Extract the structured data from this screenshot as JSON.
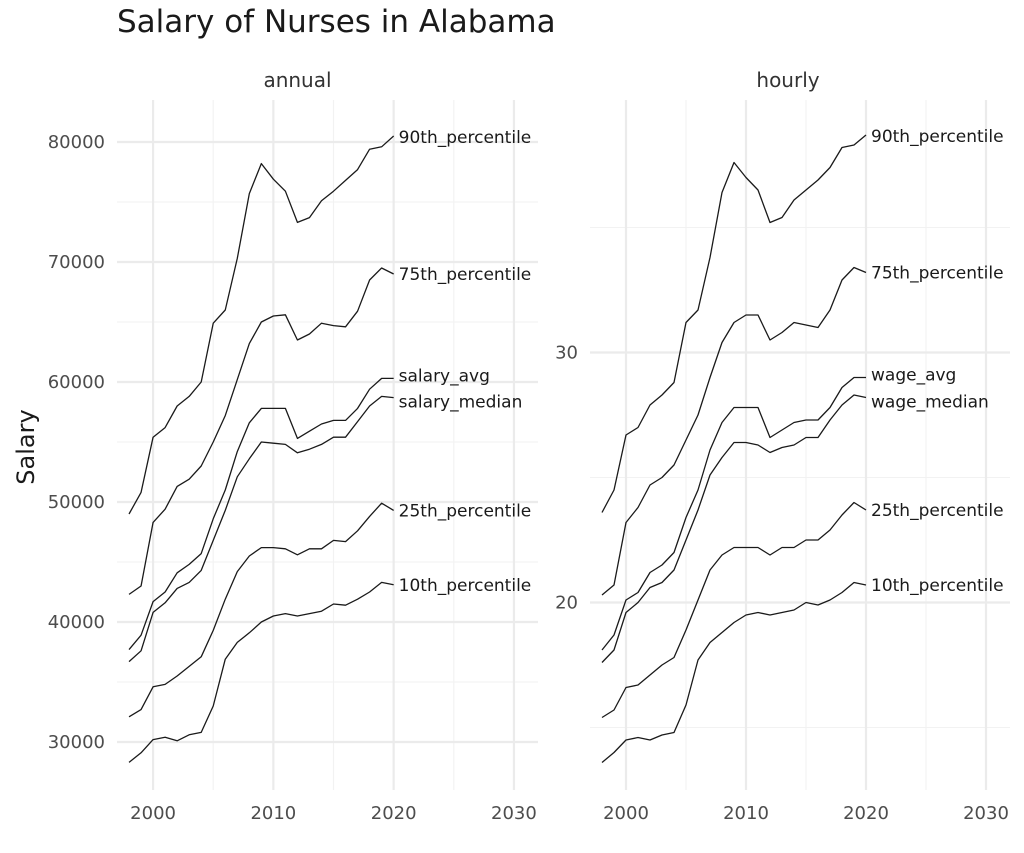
{
  "chart_data": {
    "type": "line",
    "title": "Salary of Nurses in Alabama",
    "ylabel": "Salary",
    "xlabel": "",
    "grid": true,
    "legend": "direct labels at line ends",
    "x": [
      1998,
      1999,
      2000,
      2001,
      2002,
      2003,
      2004,
      2005,
      2006,
      2007,
      2008,
      2009,
      2010,
      2011,
      2012,
      2013,
      2014,
      2015,
      2016,
      2017,
      2018,
      2019,
      2020
    ],
    "panels": [
      {
        "name": "annual",
        "xlim": [
          1997,
          2032
        ],
        "ylim": [
          26000,
          83500
        ],
        "x_ticks": [
          2000,
          2010,
          2020,
          2030
        ],
        "y_ticks": [
          30000,
          40000,
          50000,
          60000,
          70000,
          80000
        ],
        "y_tick_labels": [
          "30000",
          "40000",
          "50000",
          "60000",
          "70000",
          "80000"
        ],
        "series": [
          {
            "name": "90th_percentile",
            "values": [
              49000,
              50800,
              55400,
              56200,
              58000,
              58800,
              60000,
              64900,
              66000,
              70300,
              75700,
              78200,
              76900,
              75900,
              73300,
              73700,
              75100,
              75900,
              76800,
              77700,
              79400,
              79600,
              80500
            ]
          },
          {
            "name": "75th_percentile",
            "values": [
              42300,
              43000,
              48300,
              49400,
              51300,
              51900,
              53000,
              55000,
              57200,
              60200,
              63200,
              65000,
              65500,
              65600,
              63500,
              64000,
              64900,
              64700,
              64600,
              65900,
              68500,
              69500,
              69000
            ]
          },
          {
            "name": "salary_avg",
            "values": [
              37700,
              38900,
              41700,
              42500,
              44100,
              44800,
              45700,
              48600,
              51000,
              54200,
              56600,
              57800,
              57800,
              57800,
              55300,
              55900,
              56500,
              56800,
              56800,
              57800,
              59400,
              60300,
              60300
            ]
          },
          {
            "name": "salary_median",
            "values": [
              36700,
              37600,
              40800,
              41600,
              42800,
              43300,
              44300,
              46800,
              49300,
              52100,
              53600,
              55000,
              54900,
              54800,
              54100,
              54400,
              54800,
              55400,
              55400,
              56700,
              58000,
              58800,
              58700
            ]
          },
          {
            "name": "25th_percentile",
            "values": [
              32100,
              32700,
              34600,
              34800,
              35500,
              36300,
              37100,
              39300,
              41900,
              44200,
              45500,
              46200,
              46200,
              46100,
              45600,
              46100,
              46100,
              46800,
              46700,
              47600,
              48800,
              49900,
              49300
            ]
          },
          {
            "name": "10th_percentile",
            "values": [
              28300,
              29100,
              30200,
              30400,
              30100,
              30600,
              30800,
              33000,
              36900,
              38300,
              39100,
              40000,
              40500,
              40700,
              40500,
              40700,
              40900,
              41500,
              41400,
              41900,
              42500,
              43300,
              43100
            ]
          }
        ]
      },
      {
        "name": "hourly",
        "xlim": [
          1997,
          2032
        ],
        "ylim": [
          12500,
          40100
        ],
        "x_ticks": [
          2000,
          2010,
          2020,
          2030
        ],
        "y_ticks": [
          20,
          30
        ],
        "y_tick_labels": [
          "20",
          "30"
        ],
        "series": [
          {
            "name": "90th_percentile",
            "values": [
              23.6,
              24.5,
              26.7,
              27.0,
              27.9,
              28.3,
              28.8,
              31.2,
              31.7,
              33.8,
              36.4,
              37.6,
              37.0,
              36.5,
              35.2,
              35.4,
              36.1,
              36.5,
              36.9,
              37.4,
              38.2,
              38.3,
              38.7
            ]
          },
          {
            "name": "75th_percentile",
            "values": [
              20.3,
              20.7,
              23.2,
              23.8,
              24.7,
              25.0,
              25.5,
              26.5,
              27.5,
              29.0,
              30.4,
              31.2,
              31.5,
              31.5,
              30.5,
              30.8,
              31.2,
              31.1,
              31.0,
              31.7,
              32.9,
              33.4,
              33.2
            ]
          },
          {
            "name": "wage_avg",
            "values": [
              18.1,
              18.7,
              20.1,
              20.4,
              21.2,
              21.5,
              22.0,
              23.4,
              24.5,
              26.1,
              27.2,
              27.8,
              27.8,
              27.8,
              26.6,
              26.9,
              27.2,
              27.3,
              27.3,
              27.8,
              28.6,
              29.0,
              29.0
            ]
          },
          {
            "name": "wage_median",
            "values": [
              17.6,
              18.1,
              19.6,
              20.0,
              20.6,
              20.8,
              21.3,
              22.5,
              23.7,
              25.1,
              25.8,
              26.4,
              26.4,
              26.3,
              26.0,
              26.2,
              26.3,
              26.6,
              26.6,
              27.3,
              27.9,
              28.3,
              28.2
            ]
          },
          {
            "name": "25th_percentile",
            "values": [
              15.4,
              15.7,
              16.6,
              16.7,
              17.1,
              17.5,
              17.8,
              18.9,
              20.1,
              21.3,
              21.9,
              22.2,
              22.2,
              22.2,
              21.9,
              22.2,
              22.2,
              22.5,
              22.5,
              22.9,
              23.5,
              24.0,
              23.7
            ]
          },
          {
            "name": "10th_percentile",
            "values": [
              13.6,
              14.0,
              14.5,
              14.6,
              14.5,
              14.7,
              14.8,
              15.9,
              17.7,
              18.4,
              18.8,
              19.2,
              19.5,
              19.6,
              19.5,
              19.6,
              19.7,
              20.0,
              19.9,
              20.1,
              20.4,
              20.8,
              20.7
            ]
          }
        ]
      }
    ]
  }
}
